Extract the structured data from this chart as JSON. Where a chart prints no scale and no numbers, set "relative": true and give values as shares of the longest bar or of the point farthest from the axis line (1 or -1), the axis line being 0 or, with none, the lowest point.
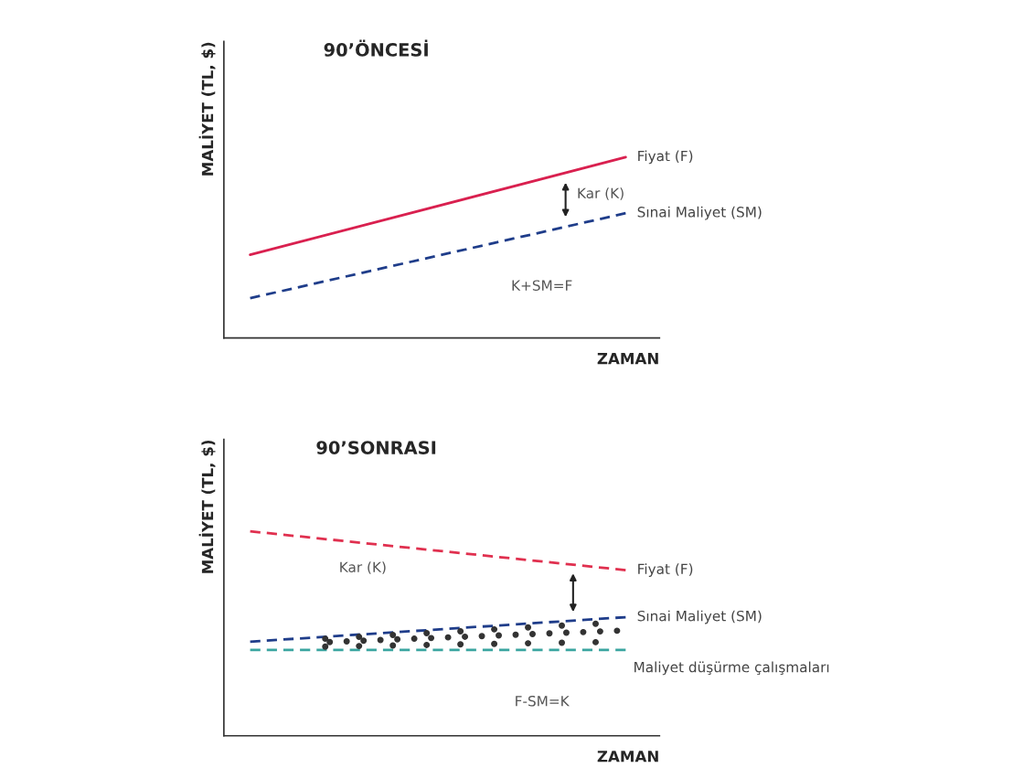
{
  "chart_data": [
    {
      "type": "line",
      "title": "90’ÖNCESİ",
      "xlabel": "ZAMAN",
      "ylabel": "MALİYET (TL, $)",
      "relative": true,
      "categories": [
        null,
        null
      ],
      "grid": false,
      "legend": false,
      "series": [
        {
          "name": "Fiyat (F)",
          "color": "#d9204f",
          "values": [
            0.46,
            1
          ],
          "line_style": "solid"
        },
        {
          "name": "Sınai Maliyet (SM)",
          "color": "#1f3d8a",
          "values": [
            0.22,
            0.69
          ],
          "line_style": "dashed"
        }
      ],
      "annotations": [
        "Kar (K)",
        "K+SM=F"
      ]
    },
    {
      "type": "line",
      "title": "90’SONRASI",
      "xlabel": "ZAMAN",
      "ylabel": "MALİYET (TL, $)",
      "relative": true,
      "categories": [
        null,
        null
      ],
      "grid": false,
      "legend": false,
      "series": [
        {
          "name": "Fiyat (F)",
          "color": "#e0304f",
          "values": [
            1,
            0.81
          ],
          "line_style": "dashed"
        },
        {
          "name": "Sınai Maliyet (SM)",
          "color": "#1f3d8a",
          "values": [
            0.46,
            0.58
          ],
          "line_style": "dashed"
        },
        {
          "color": "#3aa5a0",
          "values": [
            0.42,
            0.42
          ],
          "line_style": "dashed"
        }
      ],
      "annotations": [
        "Kar (K)",
        "Maliyet düşürme çalışmaları",
        "F-SM=K"
      ]
    }
  ]
}
